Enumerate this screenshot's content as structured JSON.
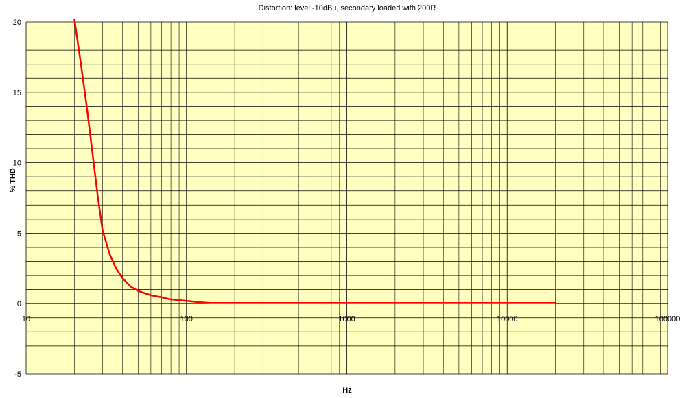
{
  "chart_data": {
    "type": "line",
    "title": "Distortion: level -10dBu, secondary loaded with 200R",
    "xlabel": "Hz",
    "ylabel": "% THD",
    "x_scale": "log",
    "xlim": [
      10,
      100000
    ],
    "ylim": [
      -5,
      20
    ],
    "x_ticks": [
      "10",
      "100",
      "1000",
      "10000",
      "100000"
    ],
    "y_ticks": [
      "-5",
      "0",
      "5",
      "10",
      "15",
      "20"
    ],
    "grid": true,
    "plot_background": "#ffffc0",
    "series": [
      {
        "color": "#ff0000",
        "x": [
          20,
          22,
          24,
          26,
          28,
          30,
          33,
          36,
          40,
          45,
          50,
          60,
          70,
          80,
          100,
          120,
          140,
          200,
          500,
          1000,
          5000,
          10000,
          20000
        ],
        "y": [
          20.2,
          17,
          13.8,
          10.6,
          7.6,
          5.2,
          3.6,
          2.6,
          1.8,
          1.2,
          0.9,
          0.6,
          0.45,
          0.3,
          0.2,
          0.1,
          0.05,
          0.05,
          0.05,
          0.05,
          0.05,
          0.05,
          0.05
        ]
      }
    ]
  }
}
